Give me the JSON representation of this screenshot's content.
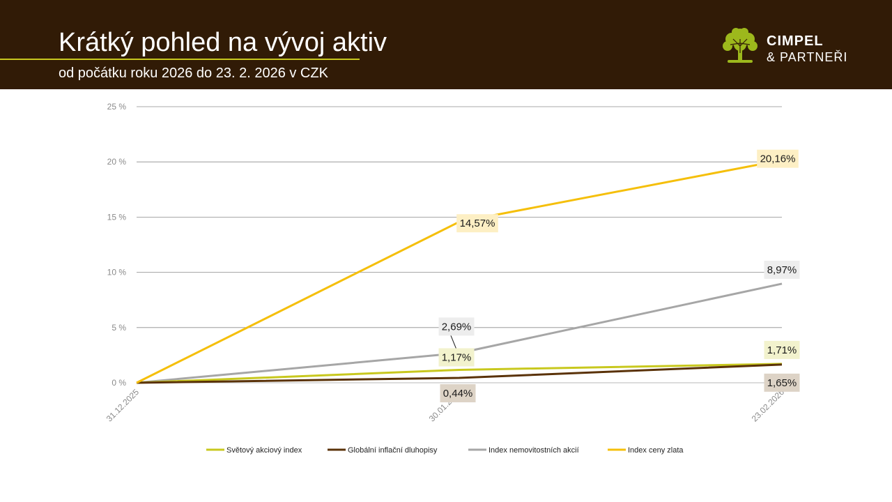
{
  "header": {
    "title": "Krátký pohled na vývoj aktiv",
    "subtitle": "od počátku roku 2026 do 23. 2. 2026 v CZK",
    "logo_line1": "CIMPEL",
    "logo_line2": "& PARTNEŘI"
  },
  "colors": {
    "header_bg": "#311b06",
    "accent_line": "#c8c81e",
    "logo_tree": "#9db81c"
  },
  "chart_data": {
    "type": "line",
    "categories": [
      "31.12.2025",
      "30.01.2026",
      "23.02.2026"
    ],
    "ylim": [
      0,
      25
    ],
    "yticks": [
      0,
      5,
      10,
      15,
      20,
      25
    ],
    "ytick_labels": [
      "0 %",
      "5 %",
      "10 %",
      "15 %",
      "20 %",
      "25 %"
    ],
    "grid": true,
    "legend_position": "bottom",
    "series": [
      {
        "name": "Světový akciový index",
        "color": "#c8c81e",
        "values": [
          0,
          1.17,
          1.71
        ],
        "labels": [
          "",
          "1,17%",
          "1,71%"
        ],
        "label_bg": "#f2f2cd"
      },
      {
        "name": "Globální inflační dluhopisy",
        "color": "#5a3208",
        "values": [
          0,
          0.44,
          1.65
        ],
        "labels": [
          "",
          "0,44%",
          "1,65%"
        ],
        "label_bg": "#ddd3c6"
      },
      {
        "name": "Index nemovitostních akcií",
        "color": "#a6a6a6",
        "values": [
          0,
          2.69,
          8.97
        ],
        "labels": [
          "",
          "2,69%",
          "8,97%"
        ],
        "label_bg": "#ededed"
      },
      {
        "name": "Index ceny zlata",
        "color": "#f5bf0a",
        "values": [
          0,
          14.57,
          20.16
        ],
        "labels": [
          "",
          "14,57%",
          "20,16%"
        ],
        "label_bg": "#fdefc4"
      }
    ]
  }
}
